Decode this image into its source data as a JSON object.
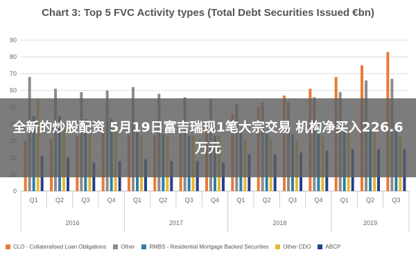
{
  "overlay": {
    "headline": "全新的炒股配资 5月19日富吉瑞现1笔大宗交易 机构净买入226.6万元"
  },
  "colors": {
    "CLO": "#e87a38",
    "Other": "#8c8c8c",
    "RMBS": "#2f7ea6",
    "OtherCDO": "#e6b830",
    "ABCP": "#243f8f"
  },
  "chart_data": {
    "type": "bar",
    "title": "Chart 3: Top 5 FVC Activity types (Total Debt Securities Issued €bn)",
    "xlabel": "",
    "ylabel": "",
    "ylim": [
      0,
      90
    ],
    "yticks": [
      0,
      10,
      20,
      30,
      40,
      50,
      60,
      70,
      80,
      90
    ],
    "grid": true,
    "legend_position": "bottom",
    "categories": [
      "Q1",
      "Q2",
      "Q3",
      "Q4",
      "Q1",
      "Q2",
      "Q3",
      "Q4",
      "Q1",
      "Q2",
      "Q3",
      "Q4",
      "Q1",
      "Q2",
      "Q3"
    ],
    "groups": [
      {
        "label": "2016",
        "count": 4
      },
      {
        "label": "2017",
        "count": 4
      },
      {
        "label": "2018",
        "count": 4
      },
      {
        "label": "2019",
        "count": 3
      }
    ],
    "series": [
      {
        "name": "CLO - Collateralised Loan Obligations",
        "key": "CLO",
        "values": [
          30,
          31,
          33,
          35,
          34,
          33,
          36,
          38,
          46,
          50,
          57,
          61,
          68,
          75,
          83
        ]
      },
      {
        "name": "Other",
        "key": "Other",
        "values": [
          68,
          61,
          59,
          60,
          62,
          58,
          56,
          55,
          52,
          53,
          53,
          56,
          59,
          66,
          67
        ]
      },
      {
        "name": "RMBS - Residential Mortgage Backed Securities",
        "key": "RMBS",
        "values": [
          45,
          45,
          43,
          43,
          35,
          34,
          33,
          33,
          35,
          35,
          34,
          34,
          36,
          37,
          36
        ]
      },
      {
        "name": "Other CDO",
        "key": "OtherCDO",
        "values": [
          55,
          40,
          36,
          36,
          33,
          33,
          33,
          33,
          31,
          31,
          30,
          33,
          35,
          36,
          33
        ]
      },
      {
        "name": "ABCP",
        "key": "ABCP",
        "values": [
          21,
          20,
          17,
          18,
          19,
          18,
          18,
          17,
          22,
          22,
          23,
          24,
          25,
          25,
          25
        ]
      }
    ]
  }
}
